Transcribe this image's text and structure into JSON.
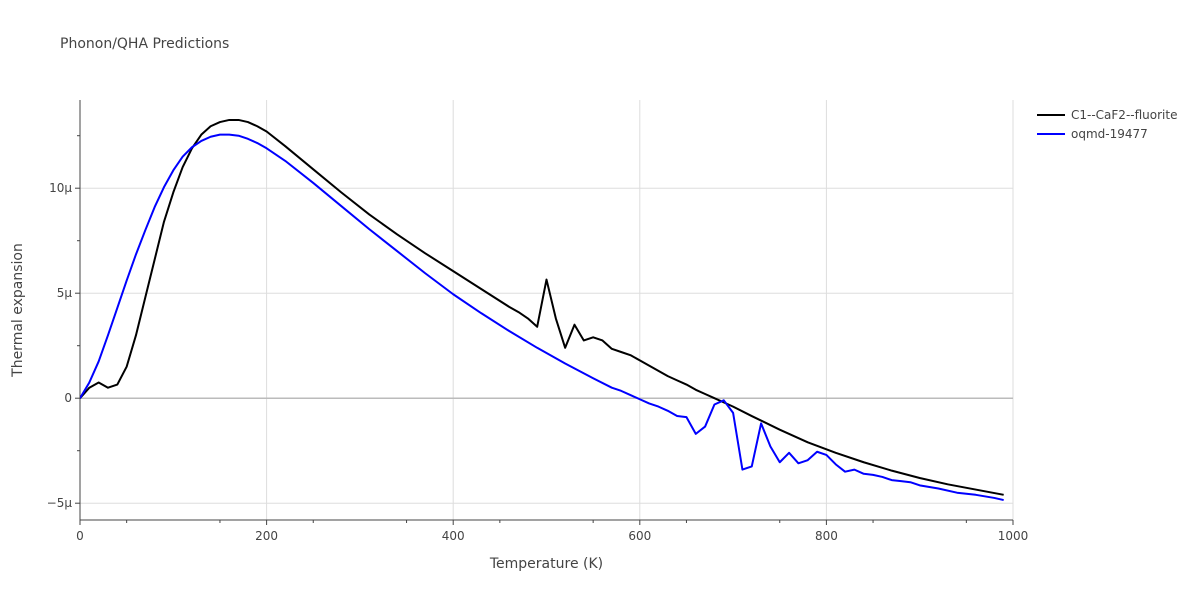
{
  "chart_data": {
    "type": "line",
    "title": "Phonon/QHA Predictions",
    "xlabel": "Temperature (K)",
    "ylabel": "Thermal expansion",
    "xlim": [
      0,
      1000
    ],
    "ylim": [
      -5.8,
      14.2
    ],
    "xticks": [
      0,
      200,
      400,
      600,
      800,
      1000
    ],
    "xtick_labels": [
      "0",
      "200",
      "400",
      "600",
      "800",
      "1000"
    ],
    "yticks": [
      -5,
      0,
      5,
      10
    ],
    "ytick_labels": [
      "−5μ",
      "0",
      "5μ",
      "10μ"
    ],
    "grid": true,
    "legend_position": "top-right",
    "series": [
      {
        "name": "C1--CaF2--fluorite",
        "color": "#000000",
        "x": [
          0,
          10,
          20,
          30,
          40,
          50,
          60,
          70,
          80,
          90,
          100,
          110,
          120,
          130,
          140,
          150,
          160,
          170,
          180,
          190,
          200,
          220,
          250,
          280,
          310,
          340,
          370,
          400,
          430,
          460,
          470,
          480,
          490,
          500,
          510,
          520,
          530,
          540,
          550,
          560,
          570,
          580,
          590,
          600,
          610,
          620,
          630,
          640,
          650,
          660,
          670,
          680,
          690,
          700,
          720,
          750,
          780,
          810,
          840,
          870,
          900,
          930,
          960,
          990
        ],
        "y": [
          0.0,
          0.5,
          0.75,
          0.5,
          0.65,
          1.5,
          3.0,
          4.8,
          6.6,
          8.4,
          9.8,
          11.0,
          11.9,
          12.55,
          12.95,
          13.15,
          13.25,
          13.25,
          13.15,
          12.95,
          12.7,
          12.0,
          10.9,
          9.8,
          8.75,
          7.8,
          6.9,
          6.05,
          5.2,
          4.35,
          4.1,
          3.8,
          3.4,
          5.65,
          3.8,
          2.4,
          3.5,
          2.75,
          2.9,
          2.75,
          2.35,
          2.2,
          2.05,
          1.8,
          1.55,
          1.3,
          1.05,
          0.85,
          0.65,
          0.4,
          0.2,
          0.0,
          -0.2,
          -0.4,
          -0.85,
          -1.5,
          -2.1,
          -2.6,
          -3.05,
          -3.45,
          -3.8,
          -4.1,
          -4.35,
          -4.6
        ]
      },
      {
        "name": "oqmd-19477",
        "color": "#0000ff",
        "x": [
          0,
          10,
          20,
          30,
          40,
          50,
          60,
          70,
          80,
          90,
          100,
          110,
          120,
          130,
          140,
          150,
          160,
          170,
          180,
          190,
          200,
          220,
          250,
          280,
          310,
          340,
          370,
          400,
          430,
          460,
          490,
          520,
          550,
          570,
          580,
          590,
          600,
          610,
          620,
          630,
          640,
          650,
          660,
          670,
          680,
          690,
          700,
          710,
          720,
          730,
          740,
          750,
          760,
          770,
          780,
          790,
          800,
          810,
          820,
          830,
          840,
          850,
          860,
          870,
          880,
          890,
          900,
          920,
          940,
          960,
          980,
          990
        ],
        "y": [
          0.0,
          0.75,
          1.75,
          3.0,
          4.3,
          5.6,
          6.85,
          8.0,
          9.1,
          10.05,
          10.85,
          11.5,
          11.95,
          12.25,
          12.45,
          12.55,
          12.55,
          12.5,
          12.35,
          12.15,
          11.9,
          11.3,
          10.25,
          9.15,
          8.05,
          7.0,
          5.95,
          4.95,
          4.05,
          3.2,
          2.4,
          1.65,
          0.95,
          0.5,
          0.35,
          0.15,
          -0.05,
          -0.25,
          -0.4,
          -0.6,
          -0.85,
          -0.9,
          -1.7,
          -1.35,
          -0.3,
          -0.1,
          -0.7,
          -3.4,
          -3.25,
          -1.2,
          -2.3,
          -3.05,
          -2.6,
          -3.1,
          -2.95,
          -2.55,
          -2.7,
          -3.15,
          -3.5,
          -3.4,
          -3.6,
          -3.65,
          -3.75,
          -3.9,
          -3.95,
          -4.0,
          -4.15,
          -4.3,
          -4.5,
          -4.6,
          -4.75,
          -4.85
        ]
      }
    ]
  }
}
